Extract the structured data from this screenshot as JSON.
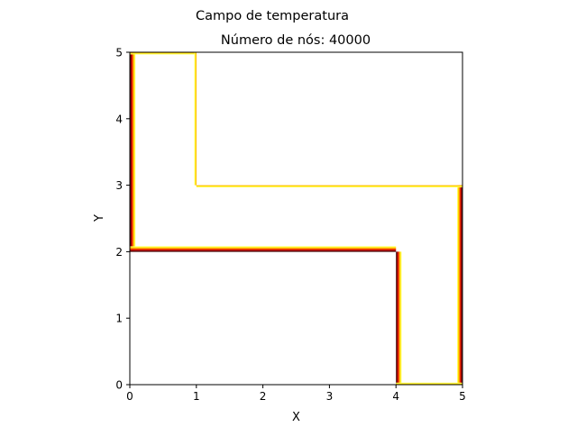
{
  "figure": {
    "suptitle": "Campo de temperatura"
  },
  "chart_data": {
    "type": "heatmap",
    "title": "Número de nós: 40000",
    "xlabel": "X",
    "ylabel": "Y",
    "xlim": [
      0,
      5
    ],
    "ylim": [
      0,
      5
    ],
    "xticks": [
      "0",
      "1",
      "2",
      "3",
      "4",
      "5"
    ],
    "yticks": [
      "0",
      "1",
      "2",
      "3",
      "4",
      "5"
    ],
    "grid": false,
    "colormap": "hot",
    "background_value_color": "#ffffff",
    "domain_outline": [
      [
        0,
        5
      ],
      [
        1,
        5
      ],
      [
        1,
        3
      ],
      [
        5,
        3
      ],
      [
        5,
        0
      ],
      [
        4,
        0
      ],
      [
        4,
        2
      ],
      [
        0,
        2
      ]
    ],
    "boundary_colors": [
      "#3a0000",
      "#7a0000",
      "#b80000",
      "#e82000",
      "#ff6a00",
      "#ffb000",
      "#ffe600",
      "#ffff60"
    ],
    "hot_edges": [
      {
        "from": [
          0,
          2
        ],
        "to": [
          0,
          5
        ],
        "inside": "right"
      },
      {
        "from": [
          0,
          2
        ],
        "to": [
          4,
          2
        ],
        "inside": "up"
      },
      {
        "from": [
          4,
          0
        ],
        "to": [
          4,
          2
        ],
        "inside": "right"
      },
      {
        "from": [
          5,
          0
        ],
        "to": [
          5,
          3
        ],
        "inside": "left"
      }
    ],
    "warm_edges": [
      {
        "from": [
          0,
          5
        ],
        "to": [
          1,
          5
        ],
        "inside": "down"
      },
      {
        "from": [
          1,
          3
        ],
        "to": [
          1,
          5
        ],
        "inside": "left"
      },
      {
        "from": [
          1,
          3
        ],
        "to": [
          5,
          3
        ],
        "inside": "down"
      },
      {
        "from": [
          4,
          0
        ],
        "to": [
          5,
          0
        ],
        "inside": "up"
      }
    ]
  }
}
